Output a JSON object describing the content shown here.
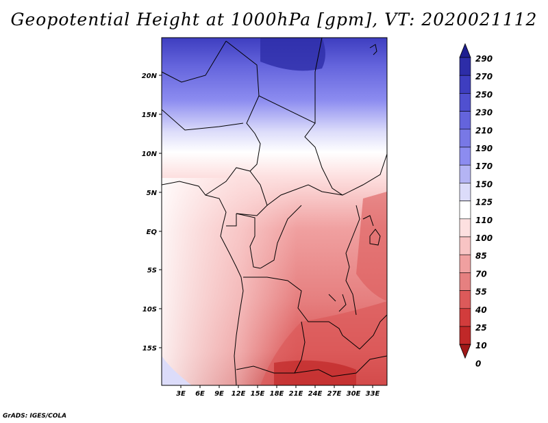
{
  "title": "Geopotential Height at 1000hPa [gpm], VT: 2020021112",
  "credit": "GrADS: IGES/COLA",
  "map": {
    "lat_labels": [
      "20N",
      "15N",
      "10N",
      "5N",
      "EQ",
      "5S",
      "10S",
      "15S"
    ],
    "lon_labels": [
      "3E",
      "6E",
      "9E",
      "12E",
      "15E",
      "18E",
      "21E",
      "24E",
      "27E",
      "30E",
      "33E"
    ]
  },
  "colorbar": {
    "levels": [
      "290",
      "270",
      "250",
      "230",
      "210",
      "190",
      "170",
      "150",
      "125",
      "110",
      "100",
      "85",
      "70",
      "55",
      "40",
      "25",
      "10",
      "0"
    ],
    "colors": [
      "#1e1e90",
      "#2d2da8",
      "#3e3ec0",
      "#5050d0",
      "#6464dc",
      "#7878e6",
      "#8c8cf0",
      "#b4b4f4",
      "#dcdcfa",
      "#ffffff",
      "#fde0e0",
      "#f8c4c4",
      "#f0a0a0",
      "#e68080",
      "#dc5a5a",
      "#d23c3c",
      "#c02828",
      "#a01818"
    ]
  }
}
